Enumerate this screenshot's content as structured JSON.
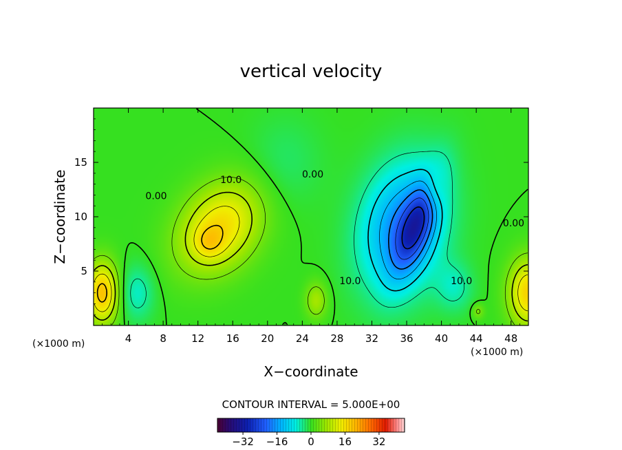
{
  "chart_data": {
    "type": "heatmap",
    "title": "vertical velocity",
    "xlabel": "X−coordinate",
    "ylabel": "Z−coordinate",
    "xunit": "(×1000 m)",
    "xlim": [
      0,
      50
    ],
    "ylim": [
      0,
      20
    ],
    "xticks": [
      4,
      8,
      12,
      16,
      20,
      24,
      28,
      32,
      36,
      40,
      44,
      48
    ],
    "yticks": [
      5,
      10,
      15
    ],
    "contour_interval_label": "CONTOUR INTERVAL = 5.000E+00",
    "contour_interval": 5.0,
    "contour_labels": [
      {
        "text": "0.00",
        "x": 7.2,
        "z": 11.6
      },
      {
        "text": "10.0",
        "x": 15.8,
        "z": 13.1
      },
      {
        "text": "0.00",
        "x": 25.2,
        "z": 13.6
      },
      {
        "text": "10.0",
        "x": 29.5,
        "z": 3.8
      },
      {
        "text": "10.0",
        "x": 42.3,
        "z": 3.8
      },
      {
        "text": "0.00",
        "x": 48.3,
        "z": 9.1
      }
    ],
    "features": [
      {
        "name": "updraft",
        "x": 14,
        "z": 8.5,
        "value": 20
      },
      {
        "name": "downdraft",
        "x": 37,
        "z": 9.5,
        "value": -36
      },
      {
        "name": "left-edge updraft",
        "x": 1,
        "z": 3,
        "value": 22
      },
      {
        "name": "right-edge updraft",
        "x": 50,
        "z": 3,
        "value": 20
      }
    ],
    "colorbar": {
      "min": -44,
      "max": 44,
      "ticks": [
        -32,
        -16,
        0,
        16,
        32
      ],
      "tick_labels": [
        "−32",
        "−16",
        "0",
        "16",
        "32"
      ]
    }
  }
}
